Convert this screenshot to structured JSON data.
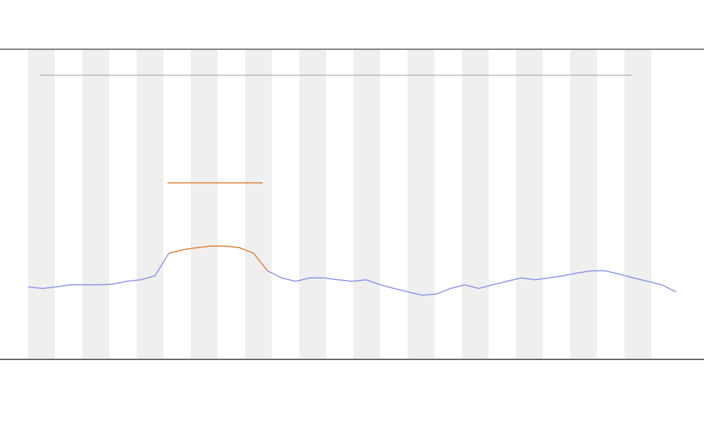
{
  "chart_data": {
    "type": "line",
    "categories": [
      null,
      null,
      null,
      null,
      null,
      null,
      null,
      null,
      null,
      null,
      null,
      null,
      null,
      null,
      null,
      null,
      null,
      null,
      null,
      null,
      null,
      null,
      null,
      null,
      null,
      null,
      null,
      null,
      null,
      null,
      null,
      null,
      null,
      null,
      null,
      null,
      null,
      null,
      null,
      null,
      null,
      null,
      null,
      null,
      null,
      null,
      null
    ],
    "series": [
      {
        "color": "#8a90e8",
        "values": [
          23.2,
          22.7,
          23.2,
          23.9,
          23.9,
          23.9,
          24.1,
          25,
          25.5,
          26.8,
          34.1,
          null,
          null,
          null,
          null,
          null,
          null,
          28.4,
          26.1,
          25,
          26.1,
          26.1,
          25.5,
          25,
          25.5,
          23.9,
          22.7,
          21.6,
          20.5,
          20.9,
          22.7,
          23.9,
          22.7,
          23.9,
          25,
          26.1,
          25.5,
          26.1,
          26.8,
          27.7,
          28.4,
          28.4,
          27.3,
          26.1,
          25,
          23.9,
          21.6
        ]
      },
      {
        "color": "#e07b2a",
        "values": [
          null,
          null,
          null,
          null,
          null,
          null,
          null,
          null,
          null,
          null,
          34.1,
          35.2,
          35.9,
          36.4,
          36.4,
          35.9,
          34.1,
          28.4,
          null,
          null,
          null,
          null,
          null,
          null,
          null,
          null,
          null,
          null,
          null,
          null,
          null,
          null,
          null,
          null,
          null,
          null,
          null,
          null,
          null,
          null,
          null,
          null,
          null,
          null,
          null,
          null,
          null
        ]
      }
    ],
    "ylim": [
      0,
      100
    ]
  }
}
